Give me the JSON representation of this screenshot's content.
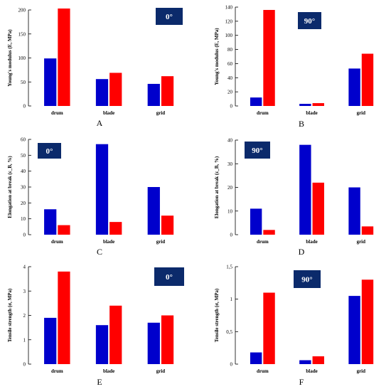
{
  "colors": {
    "series_a": "#0000cc",
    "series_b": "#ff0000",
    "badge": "#0b2a6b"
  },
  "chart_data": [
    {
      "type": "bar",
      "panel_label": "A",
      "badge": "0°",
      "ylabel": "Young's modulus (E, MPa)",
      "categories": [
        "drum",
        "blade",
        "grid"
      ],
      "series": [
        {
          "values": [
            99,
            56,
            46
          ]
        },
        {
          "values": [
            203,
            69,
            62
          ]
        }
      ],
      "ylim": [
        0,
        200
      ],
      "yticks": [
        "0",
        "50",
        "100",
        "150",
        "200"
      ]
    },
    {
      "type": "bar",
      "panel_label": "B",
      "badge": "90°",
      "ylabel": "Young's modulus (E, MPa)",
      "categories": [
        "drum",
        "blade",
        "grid"
      ],
      "series": [
        {
          "values": [
            12,
            3,
            53
          ]
        },
        {
          "values": [
            136,
            4,
            74
          ]
        }
      ],
      "ylim": [
        0,
        140
      ],
      "yticks": [
        "0",
        "20",
        "40",
        "60",
        "80",
        "100",
        "120",
        "140"
      ]
    },
    {
      "type": "bar",
      "panel_label": "C",
      "badge": "0°",
      "ylabel": "Elongation at break (ε_B, %)",
      "categories": [
        "drum",
        "blade",
        "grid"
      ],
      "series": [
        {
          "values": [
            16,
            57,
            30
          ]
        },
        {
          "values": [
            6,
            8,
            12
          ]
        }
      ],
      "ylim": [
        0,
        60
      ],
      "yticks": [
        "0",
        "10",
        "20",
        "30",
        "40",
        "50",
        "60"
      ]
    },
    {
      "type": "bar",
      "panel_label": "D",
      "badge": "90°",
      "ylabel": "Elongation at break (ε_B, %)",
      "categories": [
        "drum",
        "blade",
        "grid"
      ],
      "series": [
        {
          "values": [
            11,
            38,
            20
          ]
        },
        {
          "values": [
            2,
            22,
            3.5
          ]
        }
      ],
      "ylim": [
        0,
        40
      ],
      "yticks": [
        "0",
        "10",
        "20",
        "30",
        "40"
      ]
    },
    {
      "type": "bar",
      "panel_label": "E",
      "badge": "0°",
      "ylabel": "Tensile strength (σ, MPa)",
      "categories": [
        "drum",
        "blade",
        "grid"
      ],
      "series": [
        {
          "values": [
            1.9,
            1.6,
            1.7
          ]
        },
        {
          "values": [
            3.8,
            2.4,
            2.0
          ]
        }
      ],
      "ylim": [
        0,
        4
      ],
      "yticks": [
        "0",
        "1",
        "2",
        "3",
        "4"
      ]
    },
    {
      "type": "bar",
      "panel_label": "F",
      "badge": "90°",
      "ylabel": "Tensile strength (σ, MPa)",
      "categories": [
        "drum",
        "blade",
        "grid"
      ],
      "series": [
        {
          "values": [
            0.18,
            0.06,
            1.05
          ]
        },
        {
          "values": [
            1.1,
            0.12,
            1.3
          ]
        }
      ],
      "ylim": [
        0,
        1.5
      ],
      "yticks": [
        "0",
        "0,5",
        "1",
        "1,5"
      ]
    }
  ]
}
